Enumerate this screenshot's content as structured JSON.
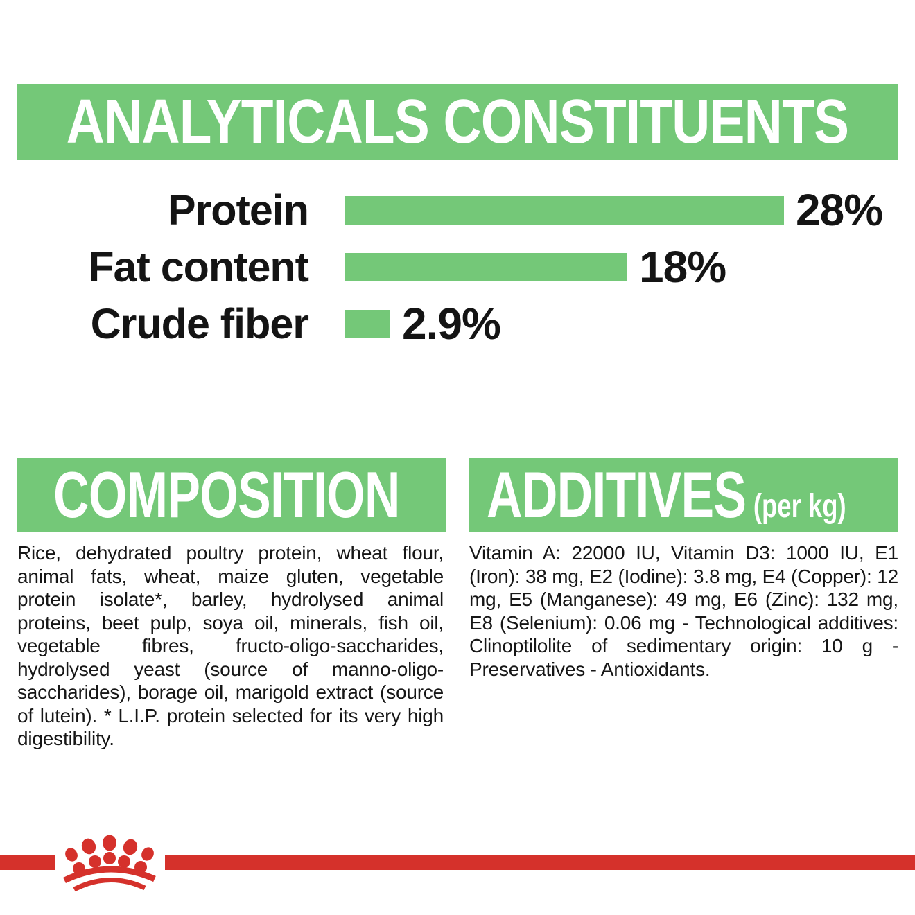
{
  "colors": {
    "green": "#74C878",
    "red": "#D5312B",
    "text": "#141414",
    "banner_text": "#ffffff"
  },
  "header": {
    "title": "ANALYTICALS CONSTITUENTS"
  },
  "chart_data": {
    "type": "bar",
    "orientation": "horizontal",
    "title": "ANALYTICALS CONSTITUENTS",
    "categories": [
      "Protein",
      "Fat content",
      "Crude fiber"
    ],
    "values": [
      28,
      18,
      2.9
    ],
    "value_labels": [
      "28%",
      "18%",
      "2.9%"
    ],
    "xlim": [
      0,
      28
    ],
    "grid": false,
    "legend": "none",
    "bar_color": "#74C878",
    "value_label_position": "right-of-bar"
  },
  "composition": {
    "title": "COMPOSITION",
    "body": "Rice, dehydrated poultry protein, wheat flour, animal fats, wheat, maize gluten, vegetable protein isolate*, barley, hydrolysed animal proteins, beet pulp, soya oil, minerals, fish oil, vegetable fibres, fructo-oligo-saccharides, hydrolysed yeast (source of manno-oligo-saccharides), borage oil, marigold extract (source of lutein). * L.I.P. protein selected for its very high digestibility."
  },
  "additives": {
    "title": "ADDITIVES",
    "unit": "(per kg)",
    "body": "Vitamin A: 22000 IU, Vitamin D3: 1000 IU, E1 (Iron): 38 mg, E2 (Iodine): 3.8 mg, E4 (Copper): 12 mg, E5 (Manganese): 49 mg, E6 (Zinc): 132 mg, E8 (Selenium): 0.06 mg - Technological additives: Clinoptilolite of sedimentary origin: 10 g - Preservatives - Antioxidants.",
    "body_lines": [
      "Vitamin A: 22000 IU, Vitamin D3:",
      "1000 IU, E1 (Iron): 38 mg, E2 (Iodine): 3.8",
      "mg, E4 (Copper): 12 mg, E5 (Manganese): 49 mg,",
      "E6 (Zinc): 132 mg, E8 (Selenium): 0.06 mg -",
      "Technological additives: Clinoptilolite of",
      "sedimentary origin: 10 g - Preservatives -",
      "Antioxidants."
    ]
  },
  "footer": {
    "logo_icon": "royal-canin-crown-logo"
  }
}
